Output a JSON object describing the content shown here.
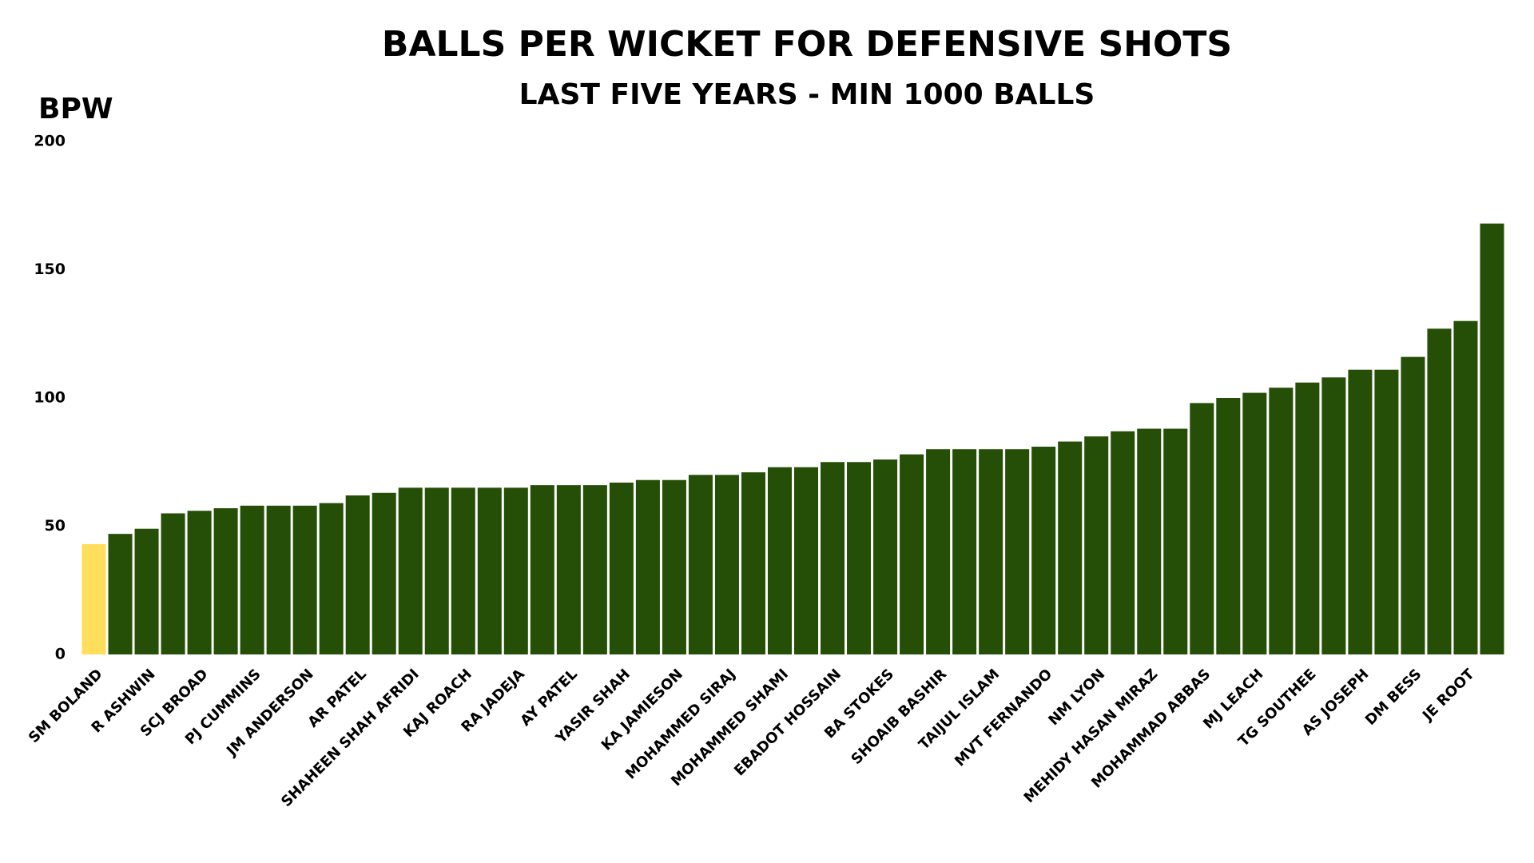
{
  "chart_data": {
    "type": "bar",
    "title": "BALLS PER WICKET FOR DEFENSIVE SHOTS",
    "subtitle": "LAST FIVE YEARS -  MIN 1000 BALLS",
    "y_label": "BPW",
    "categories": [
      "SM BOLAND",
      null,
      "R ASHWIN",
      null,
      "SCJ BROAD",
      null,
      "PJ CUMMINS",
      null,
      "JM ANDERSON",
      null,
      "AR PATEL",
      null,
      "SHAHEEN SHAH AFRIDI",
      null,
      "KAJ ROACH",
      null,
      "RA JADEJA",
      null,
      "AY PATEL",
      null,
      "YASIR SHAH",
      null,
      "KA JAMIESON",
      null,
      "MOHAMMED SIRAJ",
      null,
      "MOHAMMED SHAMI",
      null,
      "EBADOT HOSSAIN",
      null,
      "BA STOKES",
      null,
      "SHOAIB BASHIR",
      null,
      "TAIJUL ISLAM",
      null,
      "MVT FERNANDO",
      null,
      "NM LYON",
      null,
      "MEHIDY HASAN MIRAZ",
      null,
      "MOHAMMAD ABBAS",
      null,
      "MJ LEACH",
      null,
      "TG SOUTHEE",
      null,
      "AS JOSEPH",
      null,
      "DM BESS",
      null,
      "JE ROOT",
      null
    ],
    "values": [
      43,
      47,
      49,
      55,
      56,
      57,
      58,
      58,
      58,
      59,
      62,
      63,
      65,
      65,
      65,
      65,
      65,
      66,
      66,
      66,
      67,
      68,
      68,
      70,
      70,
      71,
      73,
      73,
      75,
      75,
      76,
      78,
      80,
      80,
      80,
      80,
      81,
      83,
      85,
      87,
      88,
      88,
      98,
      100,
      102,
      104,
      106,
      108,
      111,
      111,
      116,
      127,
      130,
      168
    ],
    "colors": [
      "#ffde5c",
      "#254f06",
      "#254f06",
      "#254f06",
      "#254f06",
      "#254f06",
      "#254f06",
      "#254f06",
      "#254f06",
      "#254f06",
      "#254f06",
      "#254f06",
      "#254f06",
      "#254f06",
      "#254f06",
      "#254f06",
      "#254f06",
      "#254f06",
      "#254f06",
      "#254f06",
      "#254f06",
      "#254f06",
      "#254f06",
      "#254f06",
      "#254f06",
      "#254f06",
      "#254f06",
      "#254f06",
      "#254f06",
      "#254f06",
      "#254f06",
      "#254f06",
      "#254f06",
      "#254f06",
      "#254f06",
      "#254f06",
      "#254f06",
      "#254f06",
      "#254f06",
      "#254f06",
      "#254f06",
      "#254f06",
      "#254f06",
      "#254f06",
      "#254f06",
      "#254f06",
      "#254f06",
      "#254f06",
      "#254f06",
      "#254f06",
      "#254f06",
      "#254f06",
      "#254f06",
      "#254f06"
    ],
    "ylim": [
      0,
      200
    ],
    "yticks": [
      0,
      50,
      100,
      150,
      200
    ],
    "grid": false
  }
}
